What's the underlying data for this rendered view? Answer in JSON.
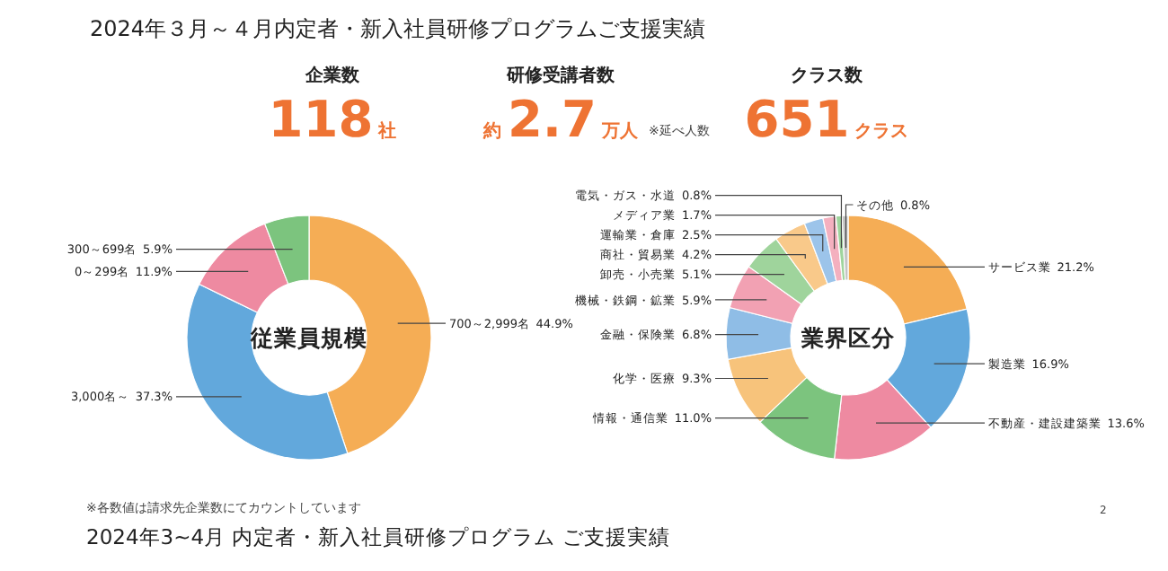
{
  "chart_data": [
    {
      "type": "other",
      "title": "2024年３月～４月内定者・新入社員研修プログラムご支援実績",
      "annotations": [
        "企業数",
        "118",
        "社",
        "研修受講者数",
        "約",
        "2.7",
        "万人",
        "※延べ人数",
        "クラス数",
        "651",
        "クラス",
        "※各数値は請求先企業数にてカウントしています",
        "2024年3~4月 内定者・新入社員研修プログラム ご支援実績",
        "2"
      ]
    },
    {
      "type": "donut",
      "title": "従業員規模",
      "categories": [
        "700～2,999名",
        "3,000名～",
        "0～299名",
        "300～699名"
      ],
      "values": [
        44.9,
        37.3,
        11.9,
        5.9
      ],
      "value_labels": [
        "44.9%",
        "37.3%",
        "11.9%",
        "5.9%"
      ],
      "colors": [
        "#f5ad55",
        "#62a8dc",
        "#ee8aa1",
        "#7cc47e"
      ]
    },
    {
      "type": "donut",
      "title": "業界区分",
      "categories": [
        "サービス業",
        "製造業",
        "不動産・建設建築業",
        "情報・通信業",
        "化学・医療",
        "金融・保険業",
        "機械・鉄鋼・鉱業",
        "卸売・小売業",
        "商社・貿易業",
        "運輸業・倉庫",
        "メディア業",
        "電気・ガス・水道",
        "その他"
      ],
      "values": [
        21.2,
        16.9,
        13.6,
        11.0,
        9.3,
        6.8,
        5.9,
        5.1,
        4.2,
        2.5,
        1.7,
        0.8,
        0.8
      ],
      "value_labels": [
        "21.2%",
        "16.9%",
        "13.6%",
        "11.0%",
        "9.3%",
        "6.8%",
        "5.9%",
        "5.1%",
        "4.2%",
        "2.5%",
        "1.7%",
        "0.8%",
        "0.8%"
      ],
      "colors": [
        "#f5ad55",
        "#62a8dc",
        "#ee8aa1",
        "#7cc47e",
        "#f7c37b",
        "#8fbde6",
        "#f2a1b3",
        "#9fd49c",
        "#f9c98a",
        "#9cc4ea",
        "#f4b0bf",
        "#9fd49d",
        "#c4c4c4"
      ]
    }
  ]
}
